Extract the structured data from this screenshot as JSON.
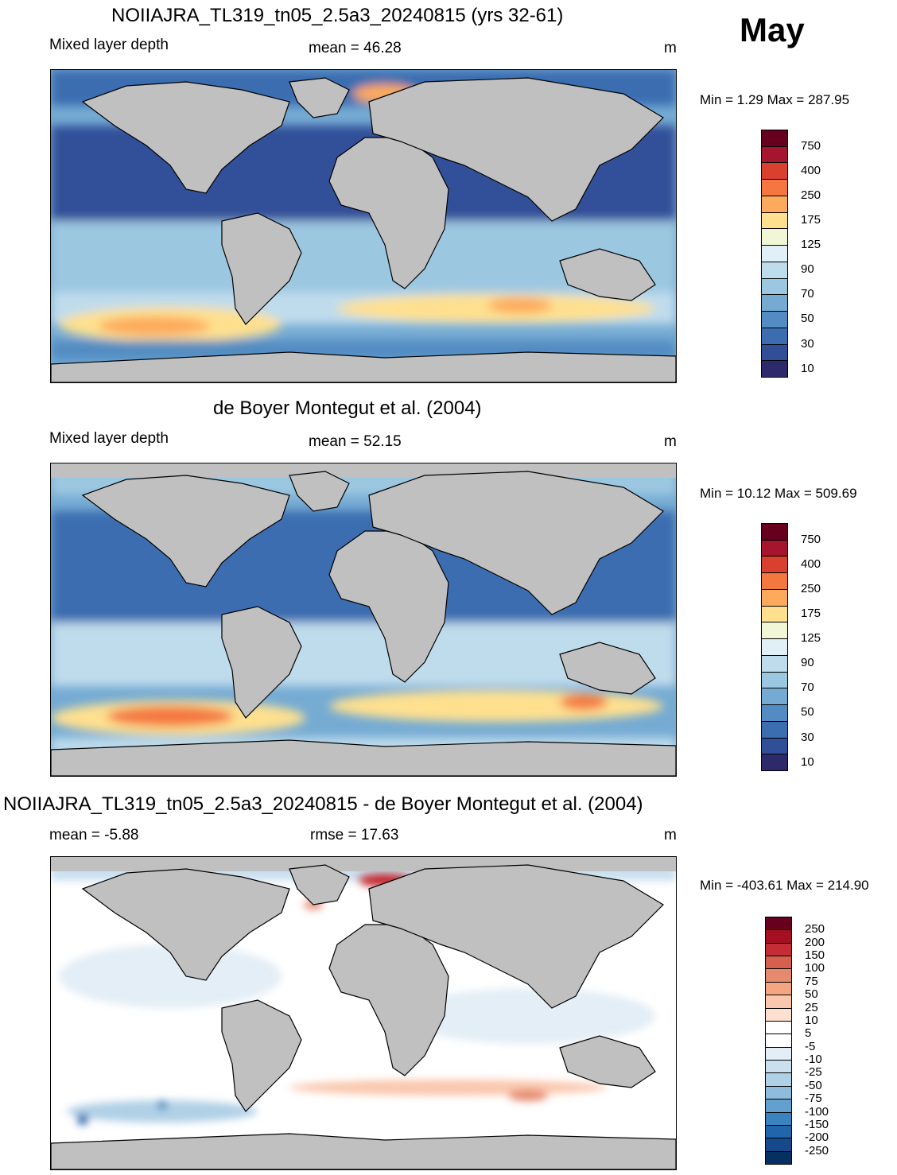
{
  "month": "May",
  "panels": [
    {
      "id": "model",
      "title": "NOIIAJRA_TL319_tn05_2.5a3_20240815 (yrs 32-61)",
      "variable": "Mixed layer depth",
      "stat": "mean =  46.28",
      "units": "m",
      "minmax": "Min =    1.29 Max = 287.95",
      "colorbar": {
        "labels": [
          "750",
          "400",
          "250",
          "175",
          "125",
          "90",
          "70",
          "50",
          "30",
          "10"
        ],
        "colors": [
          "#67001f",
          "#a5152e",
          "#d9402e",
          "#f4773f",
          "#fdaa5c",
          "#fee08f",
          "#f0f6d6",
          "#e0f0f6",
          "#bfdcec",
          "#9cc7e1",
          "#75abd3",
          "#528cc2",
          "#3b6db0",
          "#314f99",
          "#2d2a6b"
        ]
      }
    },
    {
      "id": "obs",
      "title": "de Boyer Montegut et al. (2004)",
      "variable": "Mixed layer depth",
      "stat": "mean =  52.15",
      "units": "m",
      "minmax": "Min =  10.12 Max = 509.69",
      "colorbar": {
        "labels": [
          "750",
          "400",
          "250",
          "175",
          "125",
          "90",
          "70",
          "50",
          "30",
          "10"
        ],
        "colors": [
          "#67001f",
          "#a5152e",
          "#d9402e",
          "#f4773f",
          "#fdaa5c",
          "#fee08f",
          "#f0f6d6",
          "#e0f0f6",
          "#bfdcec",
          "#9cc7e1",
          "#75abd3",
          "#528cc2",
          "#3b6db0",
          "#314f99",
          "#2d2a6b"
        ]
      }
    },
    {
      "id": "diff",
      "title": "NOIIAJRA_TL319_tn05_2.5a3_20240815 - de Boyer Montegut et al. (2004)",
      "variable": "mean =  -5.88",
      "stat": "rmse =  17.63",
      "units": "m",
      "minmax": "Min = -403.61 Max = 214.90",
      "colorbar": {
        "labels": [
          "250",
          "200",
          "150",
          "100",
          "75",
          "50",
          "25",
          "10",
          "5",
          "-5",
          "-10",
          "-25",
          "-50",
          "-75",
          "-100",
          "-150",
          "-200",
          "-250"
        ],
        "colors": [
          "#67001f",
          "#a50f22",
          "#c52d36",
          "#d6604d",
          "#e68a6f",
          "#f4a582",
          "#f9c7ad",
          "#fde0d0",
          "#ffffff",
          "#ffffff",
          "#e3eef6",
          "#cbe0ef",
          "#b0d0e6",
          "#8fbcdc",
          "#62a1cf",
          "#3984be",
          "#2166ac",
          "#15498b",
          "#053061"
        ]
      }
    }
  ]
}
